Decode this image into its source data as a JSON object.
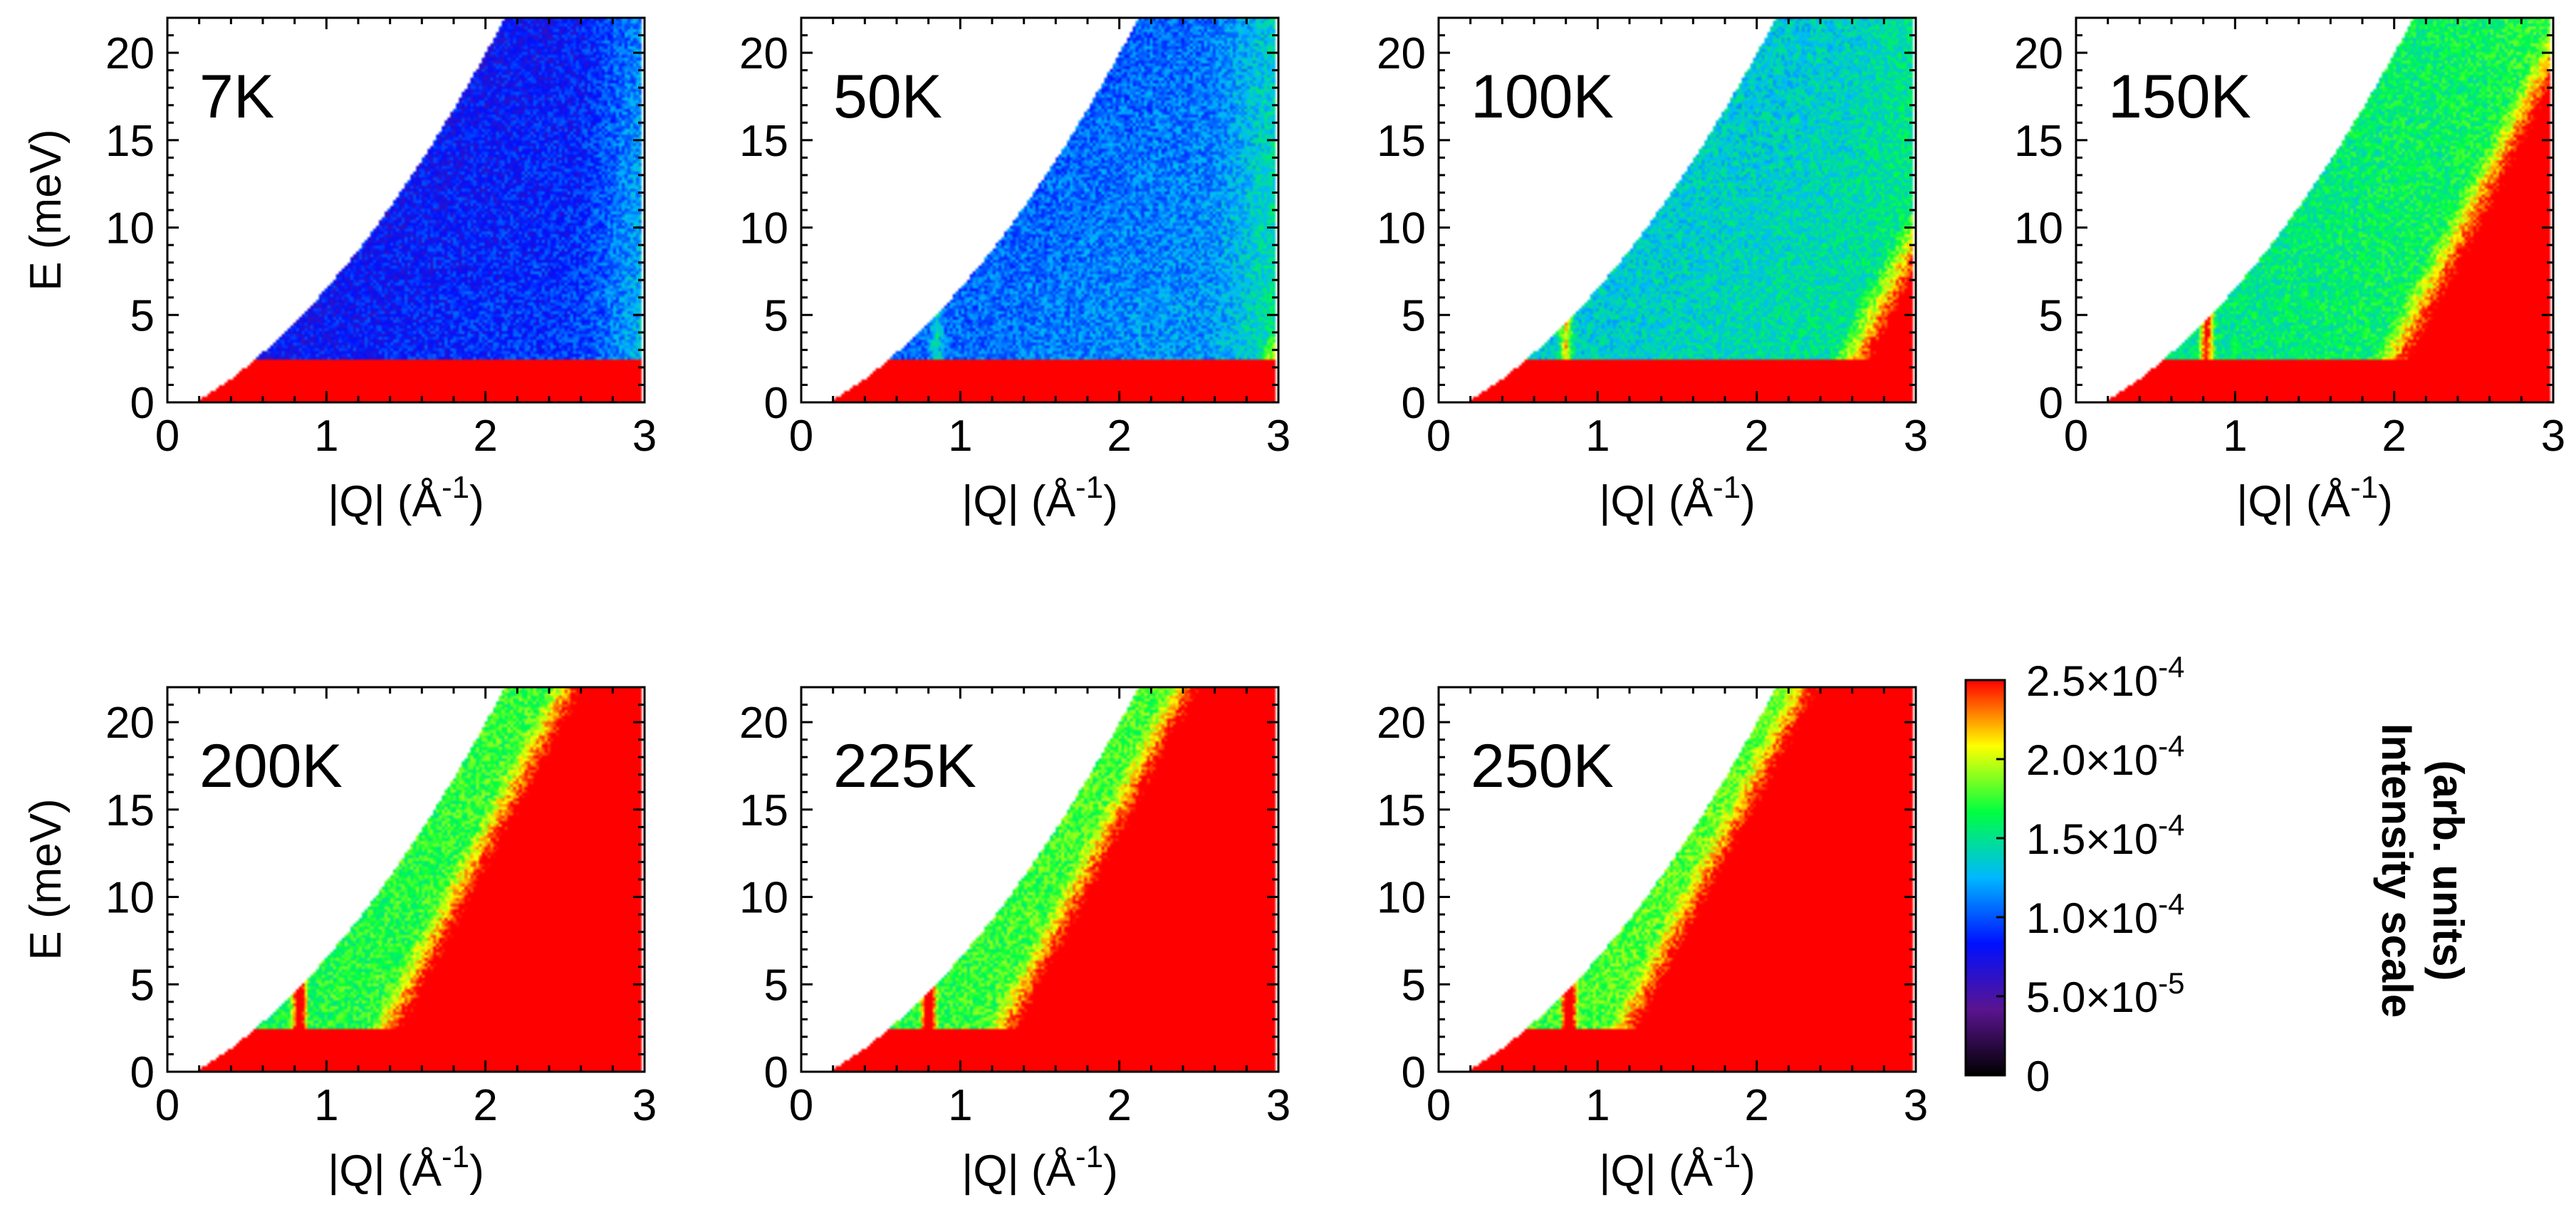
{
  "chart_data": {
    "type": "heatmap",
    "description_units": {
      "x": "|Q| (Å⁻¹)",
      "y": "E (meV)"
    },
    "xlabel": "|Q| (Å",
    "xlabel_sup": "-1",
    "xlabel_close": ")",
    "ylabel": "E (meV)",
    "xlim": [
      0,
      3
    ],
    "ylim": [
      0,
      22
    ],
    "xticks": [
      "0",
      "1",
      "2",
      "3"
    ],
    "yticks": [
      "0",
      "5",
      "10",
      "15",
      "20"
    ],
    "xtick_values": [
      0,
      1,
      2,
      3
    ],
    "ytick_values": [
      0,
      5,
      10,
      15,
      20
    ],
    "panels": [
      {
        "label": "7K",
        "temperature": 7,
        "background_level": 0.3,
        "bulk_onset_Q": 3.4,
        "mode_Q": 0.85,
        "mode_top_E": 10.5,
        "mode_strength": 0.0,
        "elastic_E": 2.5
      },
      {
        "label": "50K",
        "temperature": 50,
        "background_level": 0.4,
        "bulk_onset_Q": 2.7,
        "mode_Q": 0.85,
        "mode_top_E": 10.5,
        "mode_strength": 0.3,
        "elastic_E": 2.5
      },
      {
        "label": "100K",
        "temperature": 100,
        "background_level": 0.52,
        "bulk_onset_Q": 2.3,
        "mode_Q": 0.8,
        "mode_top_E": 10.5,
        "mode_strength": 0.6,
        "elastic_E": 2.5
      },
      {
        "label": "150K",
        "temperature": 150,
        "background_level": 0.58,
        "bulk_onset_Q": 1.7,
        "mode_Q": 0.82,
        "mode_top_E": 10.5,
        "mode_strength": 0.8,
        "elastic_E": 2.5
      },
      {
        "label": "200K",
        "temperature": 200,
        "background_level": 0.64,
        "bulk_onset_Q": 1.1,
        "mode_Q": 0.83,
        "mode_top_E": 10.5,
        "mode_strength": 1.0,
        "elastic_E": 2.5
      },
      {
        "label": "225K",
        "temperature": 225,
        "background_level": 0.66,
        "bulk_onset_Q": 1.0,
        "mode_Q": 0.8,
        "mode_top_E": 10.5,
        "mode_strength": 1.0,
        "elastic_E": 2.5
      },
      {
        "label": "250K",
        "temperature": 250,
        "background_level": 0.68,
        "bulk_onset_Q": 0.9,
        "mode_Q": 0.82,
        "mode_top_E": 10.5,
        "mode_strength": 1.0,
        "elastic_E": 2.5
      }
    ],
    "colorbar": {
      "title_line1": "Intensity scale",
      "title_line2": "(arb. units)",
      "range": [
        0,
        0.00025
      ],
      "tick_values": [
        0,
        5e-05,
        0.0001,
        0.00015,
        0.0002,
        0.00025
      ],
      "tick_labels": [
        {
          "mant": "0",
          "exp": ""
        },
        {
          "mant": "5.0×10",
          "exp": "-5"
        },
        {
          "mant": "1.0×10",
          "exp": "-4"
        },
        {
          "mant": "1.5×10",
          "exp": "-4"
        },
        {
          "mant": "2.0×10",
          "exp": "-4"
        },
        {
          "mant": "2.5×10",
          "exp": "-4"
        }
      ],
      "colors": [
        "#000000",
        "#5a1490",
        "#0010ff",
        "#00b8ff",
        "#00ff40",
        "#ffff00",
        "#ff0000"
      ]
    }
  }
}
